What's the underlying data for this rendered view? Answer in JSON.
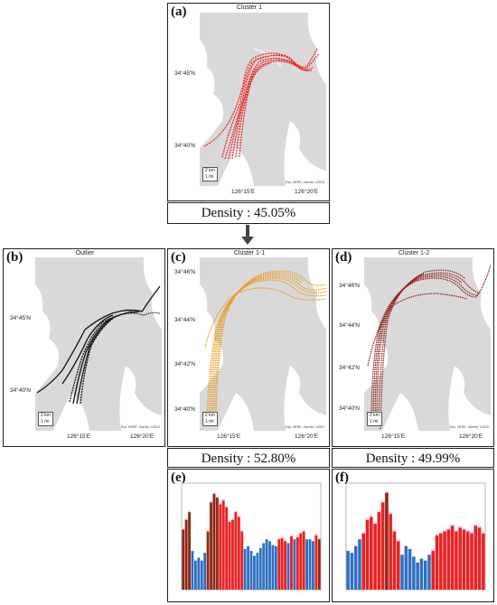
{
  "panels": {
    "a": {
      "label": "(a)",
      "title": "Cluster 1",
      "y_ticks": [
        "34°45'N",
        "34°40'N"
      ],
      "x_ticks": [
        "126°15'E",
        "126°20'E"
      ],
      "scale": [
        "2 km",
        "1 mi"
      ],
      "credit": "Esri, HERE, Garmin, USGS",
      "track_color": "#e8231f"
    },
    "b": {
      "label": "(b)",
      "title": "Outlier",
      "y_ticks": [
        "34°45'N",
        "34°40'N"
      ],
      "x_ticks": [
        "126°15'E",
        "126°20'E"
      ],
      "scale": [
        "2 km",
        "1 mi"
      ],
      "credit": "Esri, HERE, Garmin, USGS",
      "track_color": "#111111"
    },
    "c": {
      "label": "(c)",
      "title": "Cluster 1-1",
      "y_ticks": [
        "34°46'N",
        "34°44'N",
        "34°42'N",
        "34°40'N"
      ],
      "x_ticks": [
        "126°15'E",
        "126°20'E"
      ],
      "scale": [
        "2 km",
        "1 mi"
      ],
      "credit": "Esri, HERE, Garmin, USGS",
      "track_color": "#e89a1a"
    },
    "d": {
      "label": "(d)",
      "title": "Cluster 1-2",
      "y_ticks": [
        "34°46'N",
        "34°44'N",
        "34°42'N",
        "34°40'N"
      ],
      "x_ticks": [
        "126°15'E",
        "126°20'E"
      ],
      "scale": [
        "2 km",
        "1 mi"
      ],
      "credit": "Esri, HERE, Garmin, USGS",
      "track_color": "#8b1a14"
    },
    "e": {
      "label": "(e)"
    },
    "f": {
      "label": "(f)"
    }
  },
  "densities": {
    "a": "Density : 45.05%",
    "c": "Density : 52.80%",
    "d": "Density : 49.99%"
  },
  "colors": {
    "map_land": "#d9d9d9",
    "map_water": "#ffffff",
    "bar_red": "#e8231f",
    "bar_dark": "#8b2a10",
    "bar_blue": "#2f6fc0",
    "highlight": "#f5c6e6"
  },
  "chart_data": [
    {
      "type": "bar",
      "panel": "e",
      "values": [
        62,
        72,
        80,
        40,
        30,
        33,
        30,
        38,
        60,
        90,
        99,
        95,
        88,
        92,
        85,
        70,
        72,
        80,
        75,
        60,
        42,
        45,
        40,
        35,
        38,
        43,
        48,
        52,
        50,
        46,
        45,
        52,
        53,
        50,
        48,
        55,
        52,
        54,
        58,
        60,
        52,
        52,
        50,
        56,
        52
      ],
      "colors": [
        "dark",
        "dark",
        "dark",
        "blue",
        "blue",
        "blue",
        "blue",
        "blue",
        "dark",
        "dark",
        "dark",
        "dark",
        "red",
        "red",
        "red",
        "red",
        "red",
        "red",
        "red",
        "red",
        "blue",
        "blue",
        "blue",
        "blue",
        "blue",
        "blue",
        "blue",
        "blue",
        "blue",
        "blue",
        "blue",
        "red",
        "red",
        "red",
        "blue",
        "red",
        "blue",
        "red",
        "red",
        "red",
        "blue",
        "blue",
        "blue",
        "red",
        "dark"
      ],
      "ylim": [
        0,
        110
      ]
    },
    {
      "type": "bar",
      "panel": "f",
      "values": [
        40,
        38,
        45,
        52,
        58,
        72,
        75,
        68,
        80,
        90,
        100,
        78,
        60,
        50,
        36,
        45,
        42,
        34,
        28,
        32,
        30,
        36,
        40,
        56,
        58,
        60,
        62,
        66,
        60,
        64,
        62,
        60,
        58,
        66,
        64,
        58
      ],
      "colors": [
        "blue",
        "blue",
        "blue",
        "blue",
        "red",
        "red",
        "red",
        "red",
        "red",
        "red",
        "dark",
        "red",
        "red",
        "red",
        "blue",
        "blue",
        "blue",
        "blue",
        "blue",
        "blue",
        "blue",
        "blue",
        "red",
        "red",
        "red",
        "red",
        "red",
        "red",
        "red",
        "red",
        "red",
        "red",
        "red",
        "red",
        "red",
        "red"
      ],
      "ylim": [
        0,
        110
      ]
    }
  ]
}
